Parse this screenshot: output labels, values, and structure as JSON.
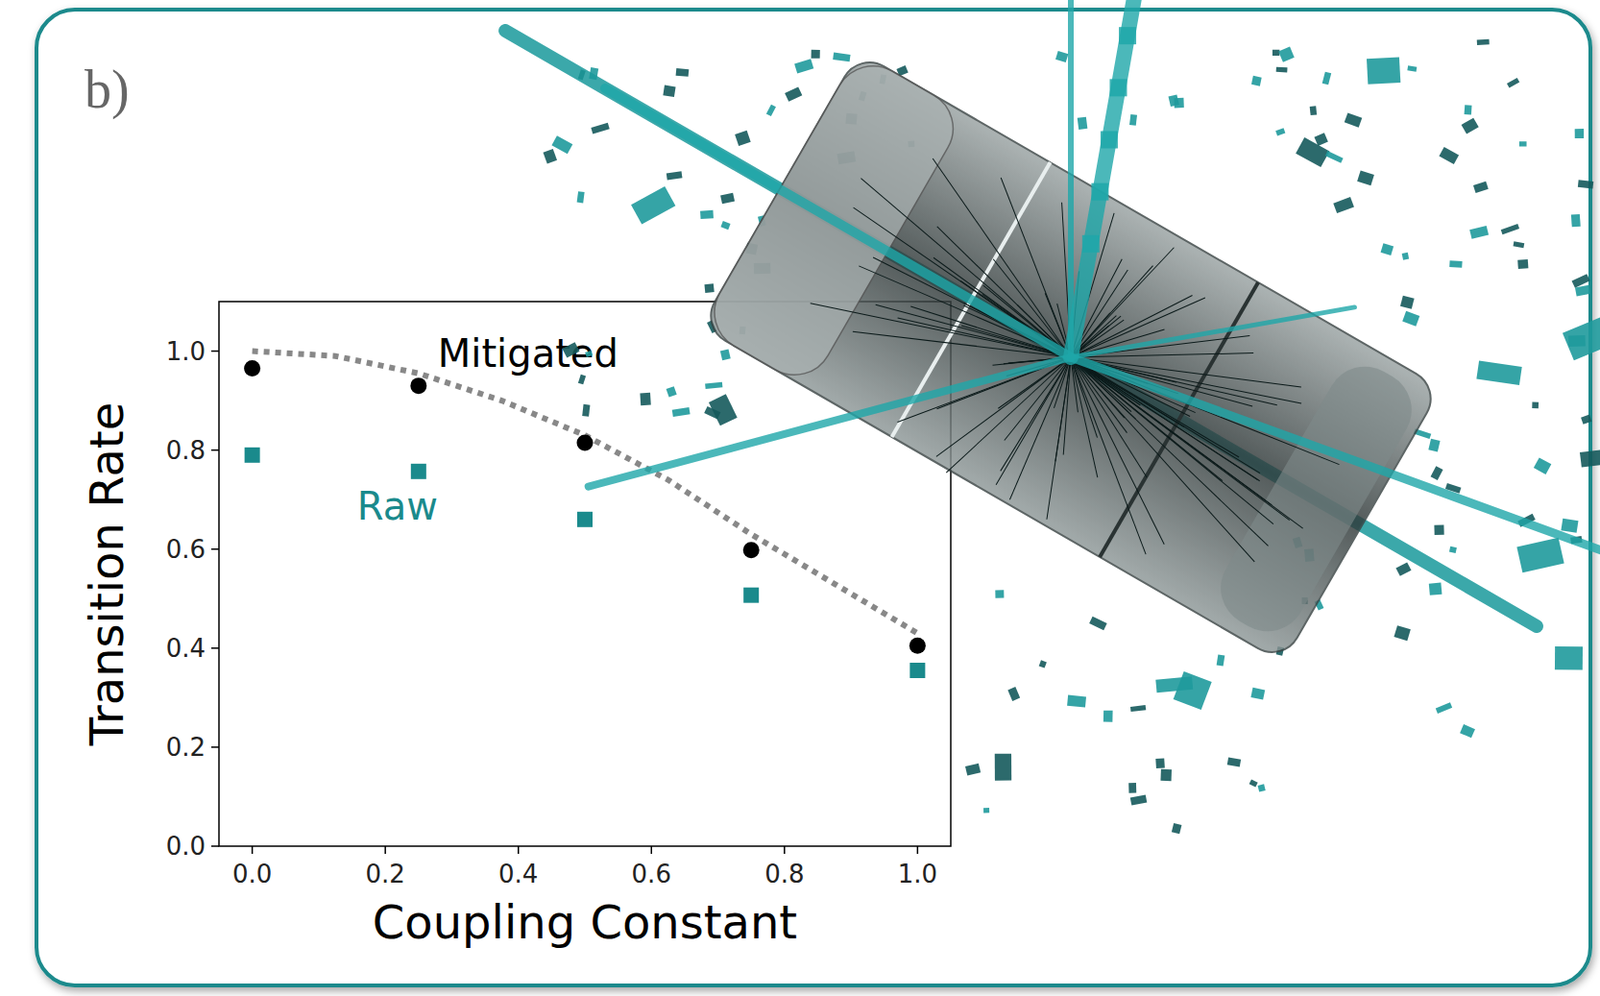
{
  "chart_data": {
    "type": "scatter",
    "panel_label": "b)",
    "x_label": "Coupling Constant",
    "y_label": "Transition Rate",
    "xlim": [
      -0.05,
      1.05
    ],
    "ylim": [
      0,
      1.1
    ],
    "xticks": [
      {
        "value": 0,
        "label": "0.0"
      },
      {
        "value": 0.2,
        "label": "0.2"
      },
      {
        "value": 0.4,
        "label": "0.4"
      },
      {
        "value": 0.6,
        "label": "0.6"
      },
      {
        "value": 0.8,
        "label": "0.8"
      },
      {
        "value": 1,
        "label": "1.0"
      }
    ],
    "yticks": [
      {
        "value": 0,
        "label": "0.0"
      },
      {
        "value": 0.2,
        "label": "0.2"
      },
      {
        "value": 0.4,
        "label": "0.4"
      },
      {
        "value": 0.6,
        "label": "0.6"
      },
      {
        "value": 0.8,
        "label": "0.8"
      },
      {
        "value": 1,
        "label": "1.0"
      }
    ],
    "series": [
      {
        "name": "Mitigated",
        "type": "scatter",
        "marker": "circle",
        "color": "#000000",
        "x": [
          0,
          0.25,
          0.5,
          0.75,
          1
        ],
        "values": [
          0.965,
          0.93,
          0.815,
          0.598,
          0.405
        ]
      },
      {
        "name": "Raw",
        "type": "scatter",
        "marker": "square",
        "color": "#1a8a8c",
        "x": [
          0,
          0.25,
          0.5,
          0.75,
          1
        ],
        "values": [
          0.79,
          0.757,
          0.66,
          0.507,
          0.355
        ]
      },
      {
        "type": "line",
        "line_style": "dotted",
        "color": "#888888",
        "x": [
          0,
          0.125,
          0.25,
          0.375,
          0.5,
          0.625,
          0.75,
          0.875,
          1
        ],
        "values": [
          1.0,
          0.99,
          0.955,
          0.9,
          0.83,
          0.74,
          0.63,
          0.53,
          0.43
        ]
      }
    ]
  }
}
